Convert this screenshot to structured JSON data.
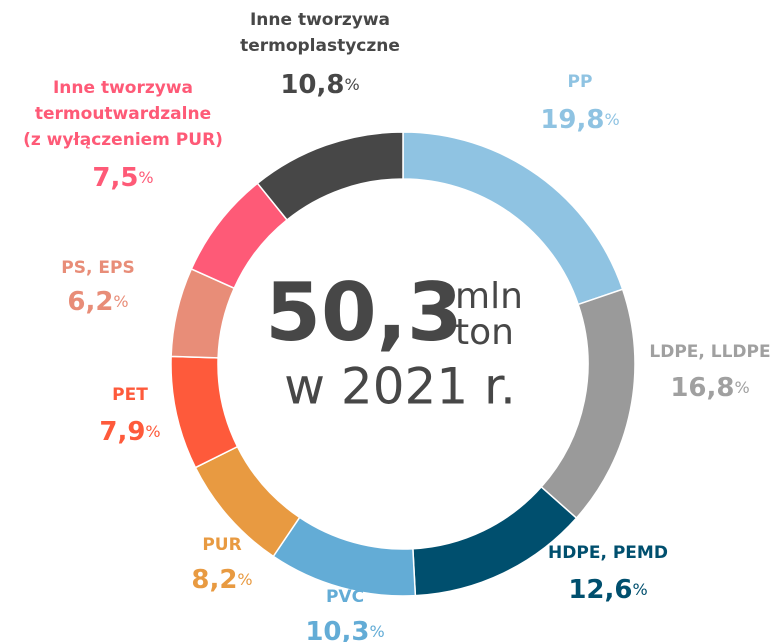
{
  "chart_data": {
    "type": "donut",
    "center": {
      "value": "50,3",
      "unit_top": "mln",
      "unit_bottom": "ton",
      "year": "w 2021 r."
    },
    "unit": "%",
    "categories": [
      [
        "PP"
      ],
      [
        "LDPE, LLDPE"
      ],
      [
        "HDPE, PEMD"
      ],
      [
        "PVC"
      ],
      [
        "PUR"
      ],
      [
        "PET"
      ],
      [
        "PS, EPS"
      ],
      [
        "Inne tworzywa",
        "termoutwardzalne",
        "(z wyłączeniem PUR)"
      ],
      [
        "Inne tworzywa",
        "termoplastyczne"
      ]
    ],
    "values": [
      19.8,
      16.8,
      12.6,
      10.3,
      8.2,
      7.9,
      6.2,
      7.5,
      10.8
    ],
    "value_labels": [
      "19,8",
      "16,8",
      "12,6",
      "10,3",
      "8,2",
      "7,9",
      "6,2",
      "7,5",
      "10,8"
    ],
    "colors": [
      "#8fc3e2",
      "#9a9a9a",
      "#004f6e",
      "#63acd6",
      "#e89a41",
      "#fe5a3b",
      "#e88d78",
      "#fe5a77",
      "#474747"
    ]
  }
}
